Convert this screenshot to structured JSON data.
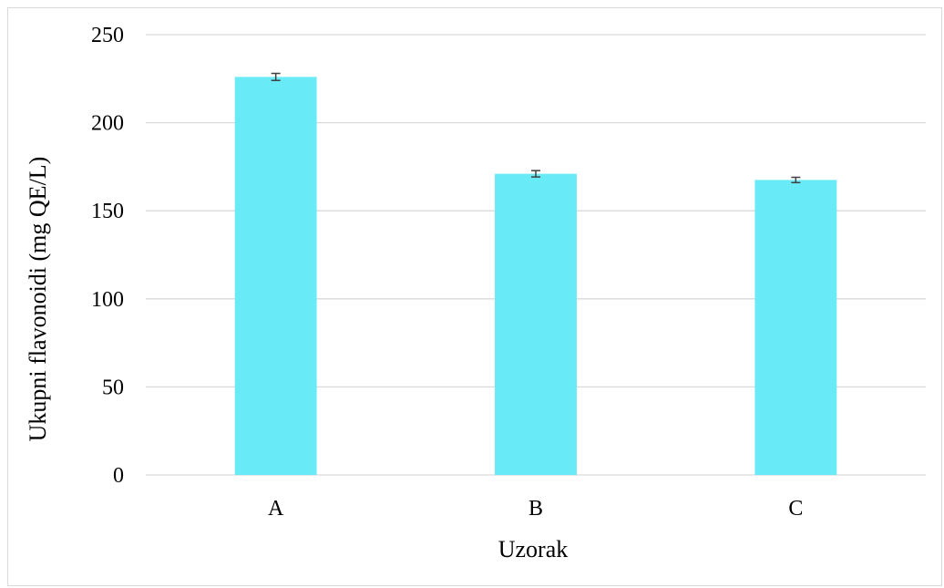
{
  "chart_data": {
    "type": "bar",
    "title": "",
    "xlabel": "Uzorak",
    "ylabel": "Ukupni flavonoidi (mg  QE/L)",
    "categories": [
      "A",
      "B",
      "C"
    ],
    "values": [
      226,
      171,
      167.5
    ],
    "errors": [
      2,
      1.8,
      1.5
    ],
    "ylim": [
      0,
      250
    ],
    "yticks": [
      0,
      50,
      100,
      150,
      200,
      250
    ],
    "grid": true,
    "legend": "none",
    "bar_color": "#69EAF7",
    "error_color": "#404040",
    "grid_color": "#d9d9d9"
  }
}
